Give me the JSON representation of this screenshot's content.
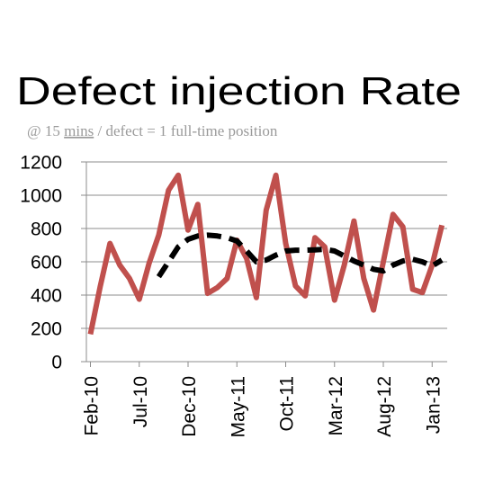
{
  "chart_data": {
    "type": "line",
    "title": "Defect injection Rate",
    "subtitle_parts": [
      "@ 15 ",
      "mins",
      " / defect = 1 full-time position"
    ],
    "subtitle_underlined_part": 1,
    "xlabel": "",
    "ylabel": "",
    "ylim": [
      0,
      1200
    ],
    "yticks": [
      0,
      200,
      400,
      600,
      800,
      1000,
      1200
    ],
    "grid": true,
    "legend": "none",
    "x": [
      "Feb-10",
      "Mar-10",
      "Apr-10",
      "May-10",
      "Jun-10",
      "Jul-10",
      "Aug-10",
      "Sep-10",
      "Oct-10",
      "Nov-10",
      "Dec-10",
      "Jan-11",
      "Feb-11",
      "Mar-11",
      "Apr-11",
      "May-11",
      "Jun-11",
      "Jul-11",
      "Aug-11",
      "Sep-11",
      "Oct-11",
      "Nov-11",
      "Dec-11",
      "Jan-12",
      "Feb-12",
      "Mar-12",
      "Apr-12",
      "May-12",
      "Jun-12",
      "Jul-12",
      "Aug-12",
      "Sep-12",
      "Oct-12",
      "Nov-12",
      "Dec-12",
      "Jan-13",
      "Feb-13"
    ],
    "xtick_labels": [
      "Feb-10",
      "Jul-10",
      "Dec-10",
      "May-11",
      "Oct-11",
      "Mar-12",
      "Aug-12",
      "Jan-13"
    ],
    "series": [
      {
        "color": "#c0504d",
        "style": "solid",
        "values": [
          165,
          450,
          710,
          580,
          500,
          375,
          590,
          760,
          1030,
          1120,
          790,
          945,
          410,
          445,
          500,
          730,
          620,
          385,
          910,
          1120,
          710,
          455,
          395,
          745,
          690,
          370,
          580,
          845,
          500,
          310,
          600,
          885,
          810,
          435,
          415,
          580,
          820
        ]
      },
      {
        "color": "#000000",
        "style": "dashed",
        "values": [
          null,
          null,
          null,
          null,
          null,
          null,
          null,
          510,
          600,
          690,
          735,
          755,
          760,
          755,
          745,
          725,
          665,
          600,
          610,
          640,
          665,
          670,
          670,
          672,
          675,
          665,
          635,
          605,
          580,
          555,
          545,
          580,
          605,
          615,
          600,
          575,
          610
        ]
      }
    ]
  }
}
